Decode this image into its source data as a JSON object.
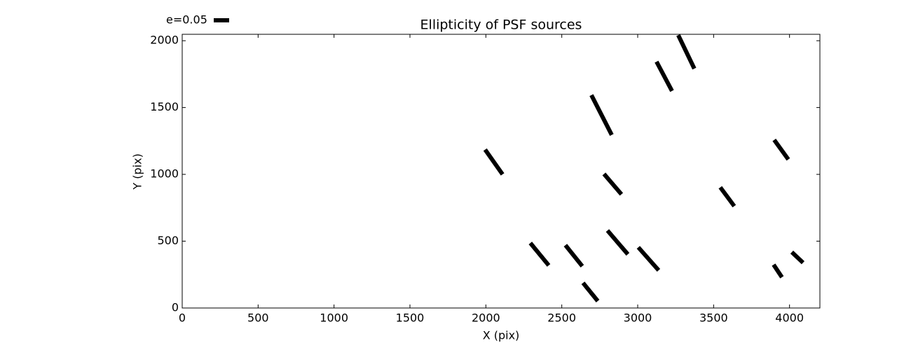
{
  "chart_data": {
    "type": "whisker",
    "title": "Ellipticity of PSF sources",
    "x_label": "X (pix)",
    "y_label": "Y (pix)",
    "key_label": "e=0.05",
    "color": "#000000",
    "xlim": [
      0,
      4200
    ],
    "ylim": [
      0,
      2048
    ],
    "xticks": [
      0,
      500,
      1000,
      1500,
      2000,
      2500,
      3000,
      3500,
      4000
    ],
    "yticks": [
      0,
      500,
      1000,
      1500,
      2000
    ],
    "x_start": [
      1995,
      2293,
      2524,
      2640,
      2695,
      2778,
      2801,
      3004,
      3124,
      3267,
      3544,
      3899,
      3895,
      4015
    ],
    "y_start": [
      1185,
      486,
      470,
      188,
      1593,
      1003,
      580,
      454,
      1843,
      2042,
      903,
      1258,
      324,
      418
    ],
    "x_end": [
      2110,
      2414,
      2635,
      2737,
      2829,
      2893,
      2935,
      3138,
      3226,
      3373,
      3636,
      3992,
      3950,
      4089
    ],
    "y_end": [
      1000,
      319,
      313,
      52,
      1295,
      851,
      402,
      282,
      1624,
      1791,
      762,
      1112,
      230,
      339
    ]
  }
}
